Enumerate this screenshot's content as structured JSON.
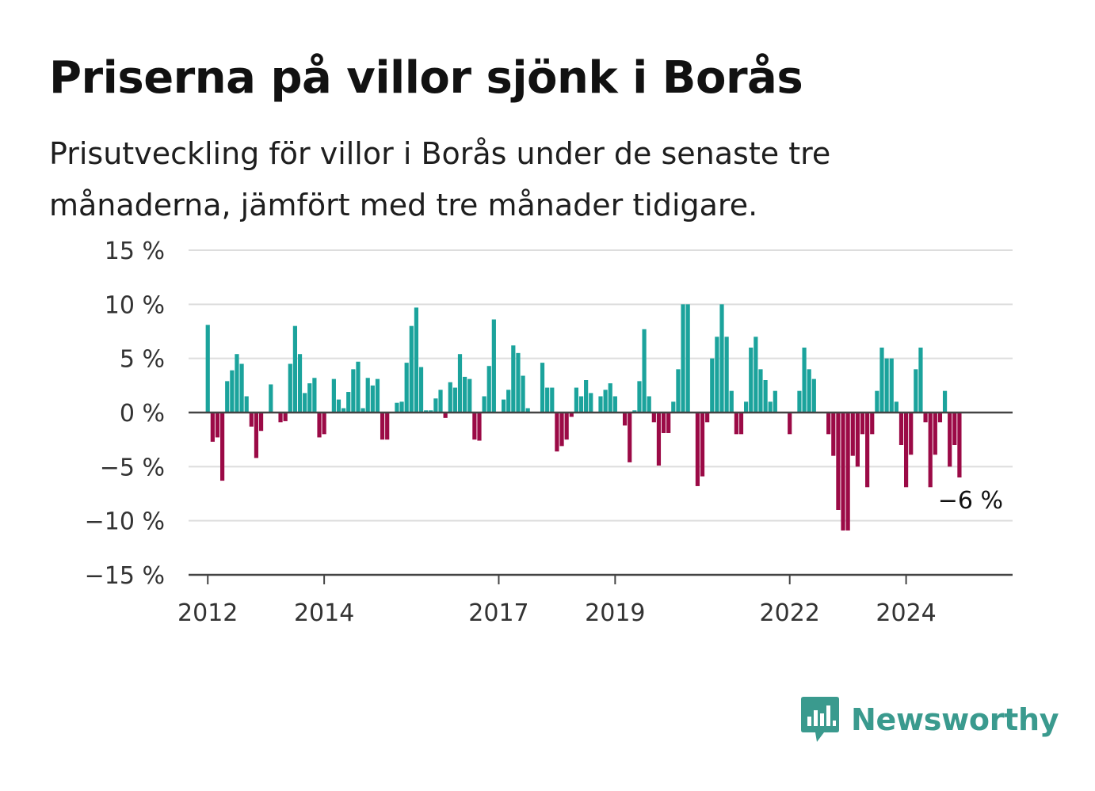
{
  "header": {
    "title": "Priserna på villor sjönk i Borås",
    "subtitle": "Prisutveckling för villor i Borås under de senaste tre månaderna, jämfört med tre månader tidigare."
  },
  "brand": {
    "name": "Newsworthy",
    "icon": "newsworthy-logo-icon",
    "color": "#3a9a8e"
  },
  "colors": {
    "positive": "#1ba39c",
    "negative": "#9b0a46",
    "grid": "#dddddd",
    "axis": "#444444"
  },
  "chart_data": {
    "type": "bar",
    "title": "Priserna på villor sjönk i Borås",
    "ylabel": "",
    "xlabel": "",
    "ylim": [
      -15,
      15
    ],
    "yticks": [
      15,
      10,
      5,
      0,
      -5,
      -10,
      -15
    ],
    "ytick_labels": [
      "15 %",
      "10 %",
      "5 %",
      "0 %",
      "−5 %",
      "−10 %",
      "−15 %"
    ],
    "xticks": [
      2012,
      2014,
      2017,
      2019,
      2022,
      2024
    ],
    "xtick_labels": [
      "2012",
      "2014",
      "2017",
      "2019",
      "2022",
      "2024"
    ],
    "xlim": [
      2011.67,
      2025.83
    ],
    "grid": true,
    "start": {
      "year": 2012,
      "month": 1
    },
    "values": [
      8.1,
      -2.7,
      -2.3,
      -6.3,
      2.9,
      3.9,
      5.4,
      4.5,
      1.5,
      -1.3,
      -4.2,
      -1.7,
      0,
      2.6,
      0,
      -0.9,
      -0.8,
      4.5,
      8.0,
      5.4,
      1.8,
      2.7,
      3.2,
      -2.3,
      -2.0,
      0,
      3.1,
      1.2,
      0.4,
      1.9,
      4.0,
      4.7,
      0.4,
      3.2,
      2.5,
      3.1,
      -2.5,
      -2.5,
      0,
      0.9,
      1.0,
      4.6,
      8.0,
      9.7,
      4.2,
      0.2,
      0.2,
      1.3,
      2.1,
      -0.5,
      2.8,
      2.3,
      5.4,
      3.3,
      3.1,
      -2.5,
      -2.6,
      1.5,
      4.3,
      8.6,
      0,
      1.2,
      2.1,
      6.2,
      5.5,
      3.4,
      0.4,
      0,
      0,
      4.6,
      2.3,
      2.3,
      -3.6,
      -3.1,
      -2.5,
      -0.4,
      2.3,
      1.5,
      3.0,
      1.8,
      0,
      1.5,
      2.1,
      2.7,
      1.5,
      0,
      -1.2,
      -4.6,
      0.2,
      2.9,
      7.7,
      1.5,
      -0.9,
      -4.9,
      -1.9,
      -1.9,
      1.0,
      4.0,
      10.0,
      10.0,
      0,
      -6.8,
      -5.9,
      -0.9,
      5.0,
      7.0,
      10.0,
      7.0,
      2.0,
      -2.0,
      -2.0,
      1.0,
      6.0,
      7.0,
      4.0,
      3.0,
      1.0,
      2.0,
      0,
      0,
      -2.0,
      0,
      2.0,
      6.0,
      4.0,
      3.1,
      0,
      0,
      -2.0,
      -4.0,
      -9.0,
      -10.9,
      -10.9,
      -4.0,
      -5.0,
      -2.0,
      -6.9,
      -2.0,
      2.0,
      6.0,
      5.0,
      5.0,
      1.0,
      -3.0,
      -6.9,
      -3.9,
      4.0,
      6.0,
      -0.9,
      -6.9,
      -3.9,
      -0.9,
      2.0,
      -5.0,
      -3.0,
      -6.0
    ],
    "annotations": [
      {
        "label": "−6 %",
        "value": -6
      }
    ]
  }
}
